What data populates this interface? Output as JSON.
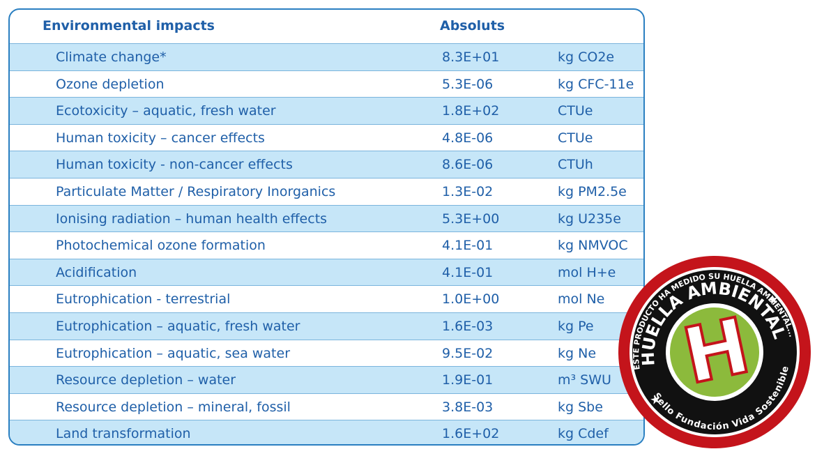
{
  "table": {
    "header": [
      "Environmental impacts",
      "Absoluts"
    ],
    "rows": [
      [
        "Climate change*",
        "8.3E+01",
        "kg CO2e"
      ],
      [
        "Ozone depletion",
        "5.3E-06",
        "kg CFC-11e"
      ],
      [
        "Ecotoxicity – aquatic, fresh water",
        "1.8E+02",
        "CTUe"
      ],
      [
        "Human toxicity – cancer effects",
        "4.8E-06",
        "CTUe"
      ],
      [
        "Human toxicity - non-cancer effects",
        "8.6E-06",
        "CTUh"
      ],
      [
        "Particulate Matter / Respiratory Inorganics",
        "1.3E-02",
        "kg PM2.5e"
      ],
      [
        "Ionising radiation – human health effects",
        "5.3E+00",
        "kg U235e"
      ],
      [
        "Photochemical ozone formation",
        "4.1E-01",
        "kg NMVOC"
      ],
      [
        "Acidification",
        "4.1E-01",
        "mol H+e"
      ],
      [
        "Eutrophication  - terrestrial",
        "1.0E+00",
        "mol Ne"
      ],
      [
        "Eutrophication – aquatic, fresh water",
        "1.6E-03",
        "kg Pe"
      ],
      [
        "Eutrophication – aquatic, sea water",
        "9.5E-02",
        "kg Ne"
      ],
      [
        "Resource depletion – water",
        "1.9E-01",
        "m³ SWU"
      ],
      [
        "Resource depletion – mineral, fossil",
        "3.8E-03",
        "kg Sbe"
      ],
      [
        "Land transformation",
        "1.6E+02",
        "kg Cdef"
      ]
    ]
  },
  "badge": {
    "outer_text": "ESTE PRODUCTO HA MEDIDO SU HUELLA AMBIENTAL...",
    "title": "HUELLA AMBIENTAL",
    "letter": "H",
    "seal": "Sello Fundación Vida Sostenible"
  }
}
